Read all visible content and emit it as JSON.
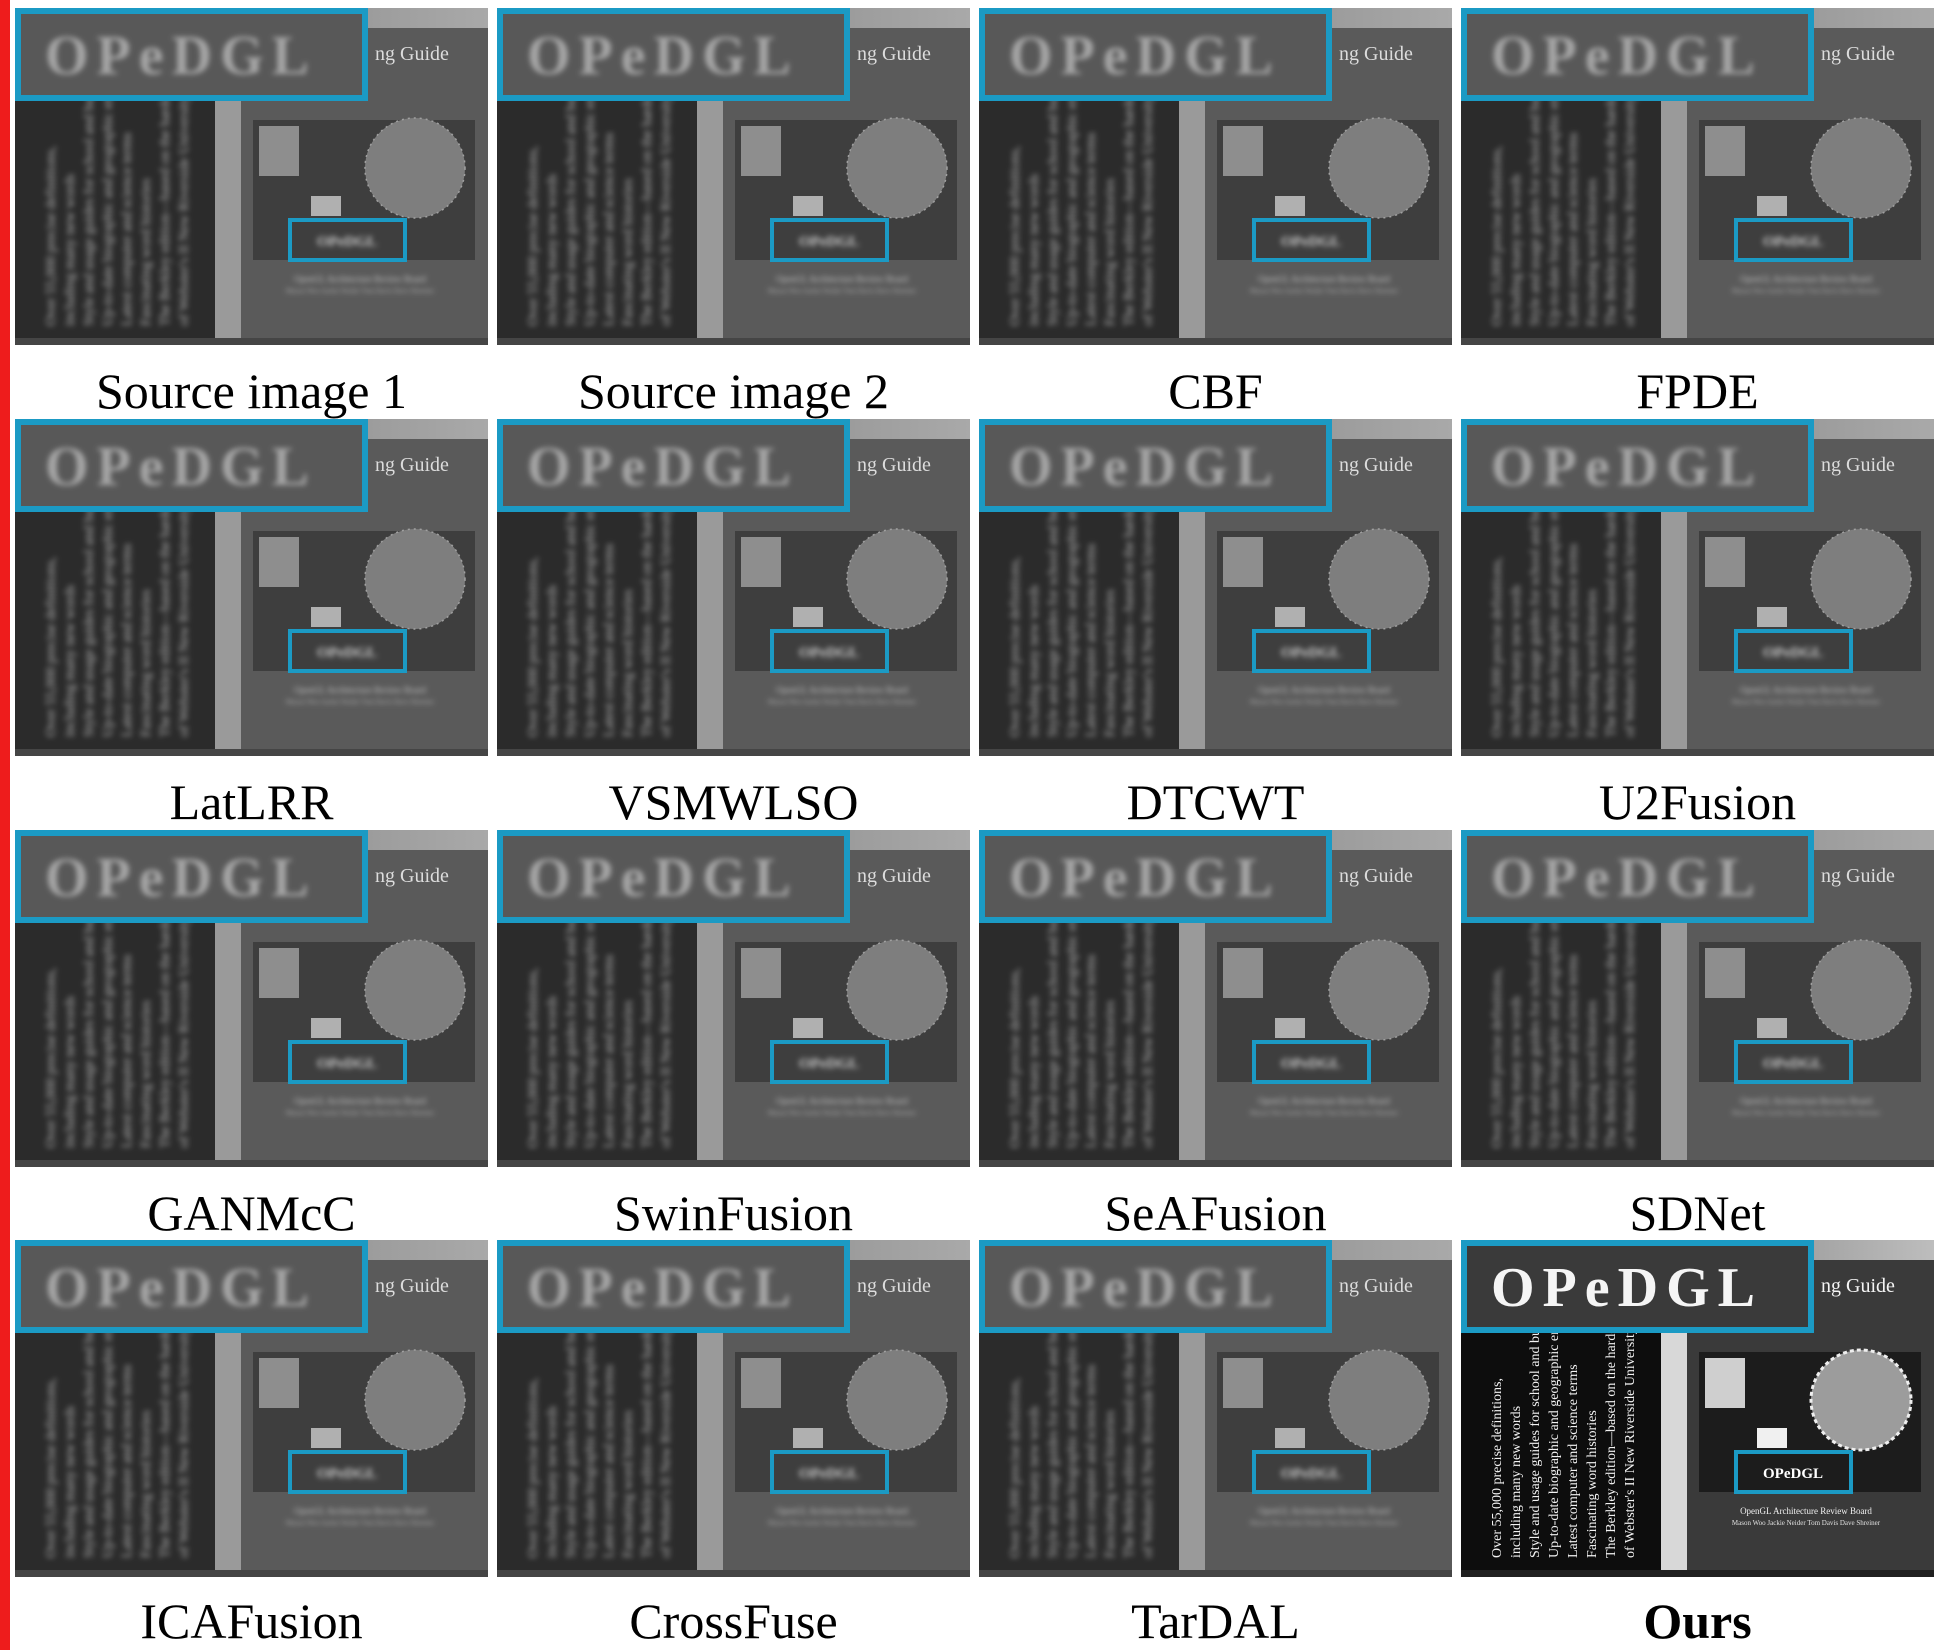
{
  "colors": {
    "highlight_box": "#1b9ac4",
    "separator_bar": "#ee1c1c"
  },
  "figure": {
    "book_cover_text": {
      "guide_fragment": "ng Guide",
      "board": "OpenGL Architecture Review Board",
      "authors": "Mason Woo  Jackie Neider  Tom Davis  Dave Shreiner",
      "spine_lines": [
        "Over 55,000 precise definitions,",
        "including many new words",
        "Style and usage guides for school and busine",
        "Up-to-date biographic and geographic entri",
        "Latest computer and science terms",
        "Fascinating word histories",
        "The Berkley edition—based on the hardcover first ed",
        "of Webster's II New Riverside University Dictional"
      ],
      "logo": "OPeDGL"
    },
    "panels": [
      {
        "caption": "Source image 1",
        "bold": false,
        "sharp": false
      },
      {
        "caption": "Source image 2",
        "bold": false,
        "sharp": false
      },
      {
        "caption": "CBF",
        "bold": false,
        "sharp": false
      },
      {
        "caption": "FPDE",
        "bold": false,
        "sharp": false
      },
      {
        "caption": "LatLRR",
        "bold": false,
        "sharp": false
      },
      {
        "caption": "VSMWLSO",
        "bold": false,
        "sharp": false
      },
      {
        "caption": "DTCWT",
        "bold": false,
        "sharp": false
      },
      {
        "caption": "U2Fusion",
        "bold": false,
        "sharp": false
      },
      {
        "caption": "GANMcC",
        "bold": false,
        "sharp": false
      },
      {
        "caption": "SwinFusion",
        "bold": false,
        "sharp": false
      },
      {
        "caption": "SeAFusion",
        "bold": false,
        "sharp": false
      },
      {
        "caption": "SDNet",
        "bold": false,
        "sharp": false
      },
      {
        "caption": "ICAFusion",
        "bold": false,
        "sharp": false
      },
      {
        "caption": "CrossFuse",
        "bold": false,
        "sharp": false
      },
      {
        "caption": "TarDAL",
        "bold": false,
        "sharp": false
      },
      {
        "caption": "Ours",
        "bold": true,
        "sharp": true
      }
    ]
  }
}
